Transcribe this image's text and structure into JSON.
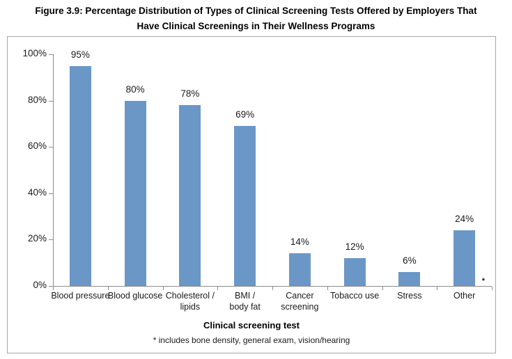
{
  "figure_title_lines": [
    "Figure 3.9: Percentage Distribution of Types of Clinical Screening Tests Offered by Employers That",
    "Have Clinical Screenings in Their Wellness Programs"
  ],
  "chart_data": {
    "type": "bar",
    "title": "Figure 3.9: Percentage Distribution of Types of Clinical Screening Tests Offered by Employers That Have Clinical Screenings in Their Wellness Programs",
    "categories": [
      "Blood pressure",
      "Blood glucose",
      "Cholesterol / lipids",
      "BMI / body fat",
      "Cancer screening",
      "Tobacco use",
      "Stress",
      "Other"
    ],
    "category_label_lines": [
      [
        "Blood pressure"
      ],
      [
        "Blood glucose"
      ],
      [
        "Cholesterol /",
        "lipids"
      ],
      [
        "BMI /",
        "body fat"
      ],
      [
        "Cancer",
        "screening"
      ],
      [
        "Tobacco use"
      ],
      [
        "Stress"
      ],
      [
        "Other"
      ]
    ],
    "values": [
      95,
      80,
      78,
      69,
      14,
      12,
      6,
      24
    ],
    "value_labels": [
      "95%",
      "80%",
      "78%",
      "69%",
      "14%",
      "12%",
      "6%",
      "24%"
    ],
    "xlabel": "Clinical screening test",
    "ylabel": "",
    "ylim": [
      0,
      100
    ],
    "y_ticks": [
      "100%",
      "80%",
      "60%",
      "40%",
      "20%",
      "0%"
    ],
    "grid": false,
    "legend": "none",
    "bar_color": "#6B97C7",
    "axis_color": "#8c8c8c",
    "border_color": "#a6a6a6",
    "footnote_marker": "*",
    "footnote": "* includes bone density, general exam, vision/hearing"
  }
}
